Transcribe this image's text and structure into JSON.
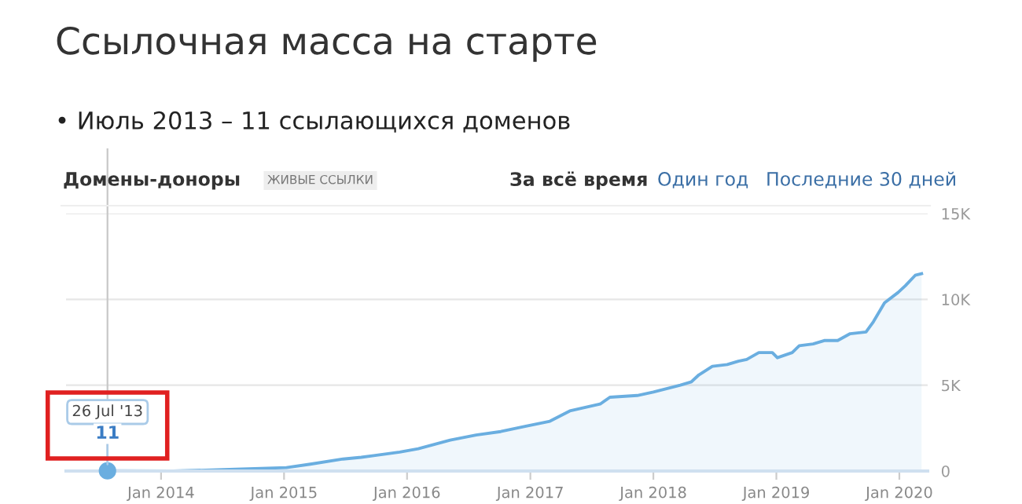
{
  "chart_data": {
    "type": "area",
    "title": "Ссылочная масса на старте",
    "subtitle": "• Июль 2013 – 11 ссылающихся доменов",
    "annotations": [
      "Домены-доноры",
      "ЖИВЫЕ ССЫЛКИ",
      "За всё время",
      "Один год",
      "Последние 30 дней",
      {
        "text": "26 Jul '13",
        "x": "2013-07-26",
        "y": 11
      },
      {
        "text": "11",
        "x": "2013-07-26",
        "y": 11
      }
    ],
    "series": [
      {
        "color": "#6aaee0",
        "x": [
          "2013-07-26",
          "2014-02-06",
          "2014-08-10",
          "2015-01-08",
          "2015-03-20",
          "2015-06-25",
          "2015-08-18",
          "2015-09-24",
          "2015-12-10",
          "2016-02-03",
          "2016-05-08",
          "2016-07-24",
          "2016-10-05",
          "2016-12-16",
          "2017-02-28",
          "2017-04-28",
          "2017-07-27",
          "2017-08-25",
          "2017-11-14",
          "2018-01-01",
          "2018-03-22",
          "2018-04-24",
          "2018-05-16",
          "2018-06-25",
          "2018-08-08",
          "2018-09-10",
          "2018-10-05",
          "2018-11-10",
          "2018-12-20",
          "2019-01-04",
          "2019-02-17",
          "2019-03-10",
          "2019-04-20",
          "2019-05-23",
          "2019-07-02",
          "2019-08-08",
          "2019-09-24",
          "2019-10-16",
          "2019-11-18",
          "2019-12-28",
          "2020-01-19",
          "2020-02-17",
          "2020-03-07"
        ],
        "values": [
          11,
          0,
          100,
          200,
          400,
          700,
          800,
          900,
          1100,
          1300,
          1800,
          2100,
          2300,
          2600,
          2900,
          3500,
          3900,
          4300,
          4400,
          4600,
          5000,
          5200,
          5600,
          6100,
          6200,
          6400,
          6500,
          6900,
          6900,
          6600,
          6900,
          7300,
          7400,
          7600,
          7600,
          8000,
          8100,
          8700,
          9800,
          10400,
          10800,
          11400,
          11500
        ]
      }
    ],
    "xlim": [
      "2013-03-25",
      "2020-03-25"
    ],
    "xticks": [
      {
        "value": "2014-01-01",
        "label": "Jan 2014"
      },
      {
        "value": "2015-01-01",
        "label": "Jan 2015"
      },
      {
        "value": "2016-01-01",
        "label": "Jan 2016"
      },
      {
        "value": "2017-01-01",
        "label": "Jan 2017"
      },
      {
        "value": "2018-01-01",
        "label": "Jan 2018"
      },
      {
        "value": "2019-01-01",
        "label": "Jan 2019"
      },
      {
        "value": "2020-01-01",
        "label": "Jan 2020"
      }
    ],
    "ylim": [
      0,
      15000
    ],
    "yticks": [
      {
        "value": 0,
        "label": "0"
      },
      {
        "value": 5000,
        "label": "5K"
      },
      {
        "value": 10000,
        "label": "10K"
      },
      {
        "value": 15000,
        "label": "15K"
      }
    ],
    "ref_lines": [
      {
        "axis": "x",
        "value": "2013-07-26",
        "color": "#c8c8c8"
      }
    ],
    "grid": "y",
    "marker": "none",
    "line_style": "solid",
    "legend": false
  }
}
